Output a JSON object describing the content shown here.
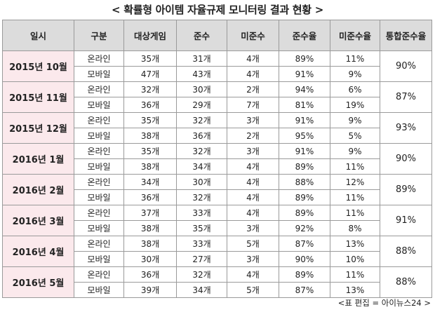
{
  "title": "< 확률형 아이템 자율규제 모니터링 결과 현황 >",
  "columns": [
    "일시",
    "구분",
    "대상게임",
    "준수",
    "미준수",
    "준수율",
    "미준수율",
    "통합준수율"
  ],
  "periods": [
    {
      "period": "2015년 10월",
      "total_rate": "90%",
      "rows": [
        {
          "type": "온라인",
          "target": "35개",
          "comply": "31개",
          "noncomply": "4개",
          "rate": "89%",
          "nonrate": "11%"
        },
        {
          "type": "모바일",
          "target": "47개",
          "comply": "43개",
          "noncomply": "4개",
          "rate": "91%",
          "nonrate": "9%"
        }
      ]
    },
    {
      "period": "2015년 11월",
      "total_rate": "87%",
      "rows": [
        {
          "type": "온라인",
          "target": "32개",
          "comply": "30개",
          "noncomply": "2개",
          "rate": "94%",
          "nonrate": "6%"
        },
        {
          "type": "모바일",
          "target": "36개",
          "comply": "29개",
          "noncomply": "7개",
          "rate": "81%",
          "nonrate": "19%"
        }
      ]
    },
    {
      "period": "2015년 12월",
      "total_rate": "93%",
      "rows": [
        {
          "type": "온라인",
          "target": "35개",
          "comply": "32개",
          "noncomply": "3개",
          "rate": "91%",
          "nonrate": "9%"
        },
        {
          "type": "모바일",
          "target": "38개",
          "comply": "36개",
          "noncomply": "2개",
          "rate": "95%",
          "nonrate": "5%"
        }
      ]
    },
    {
      "period": "2016년 1월",
      "total_rate": "90%",
      "rows": [
        {
          "type": "온라인",
          "target": "35개",
          "comply": "32개",
          "noncomply": "3개",
          "rate": "91%",
          "nonrate": "9%"
        },
        {
          "type": "모바일",
          "target": "38개",
          "comply": "34개",
          "noncomply": "4개",
          "rate": "89%",
          "nonrate": "11%"
        }
      ]
    },
    {
      "period": "2016년 2월",
      "total_rate": "89%",
      "rows": [
        {
          "type": "온라인",
          "target": "34개",
          "comply": "30개",
          "noncomply": "4개",
          "rate": "88%",
          "nonrate": "12%"
        },
        {
          "type": "모바일",
          "target": "36개",
          "comply": "32개",
          "noncomply": "4개",
          "rate": "89%",
          "nonrate": "11%"
        }
      ]
    },
    {
      "period": "2016년 3월",
      "total_rate": "91%",
      "rows": [
        {
          "type": "온라인",
          "target": "37개",
          "comply": "33개",
          "noncomply": "4개",
          "rate": "89%",
          "nonrate": "11%"
        },
        {
          "type": "모바일",
          "target": "38개",
          "comply": "35개",
          "noncomply": "3개",
          "rate": "92%",
          "nonrate": "8%"
        }
      ]
    },
    {
      "period": "2016년 4월",
      "total_rate": "88%",
      "rows": [
        {
          "type": "온라인",
          "target": "38개",
          "comply": "33개",
          "noncomply": "5개",
          "rate": "87%",
          "nonrate": "13%"
        },
        {
          "type": "모바일",
          "target": "30개",
          "comply": "27개",
          "noncomply": "3개",
          "rate": "90%",
          "nonrate": "10%"
        }
      ]
    },
    {
      "period": "2016년 5월",
      "total_rate": "88%",
      "rows": [
        {
          "type": "온라인",
          "target": "36개",
          "comply": "32개",
          "noncomply": "4개",
          "rate": "89%",
          "nonrate": "11%"
        },
        {
          "type": "모바일",
          "target": "39개",
          "comply": "34개",
          "noncomply": "5개",
          "rate": "87%",
          "nonrate": "13%"
        }
      ]
    }
  ],
  "footnote": "<표 편집 = 아이뉴스24 >"
}
